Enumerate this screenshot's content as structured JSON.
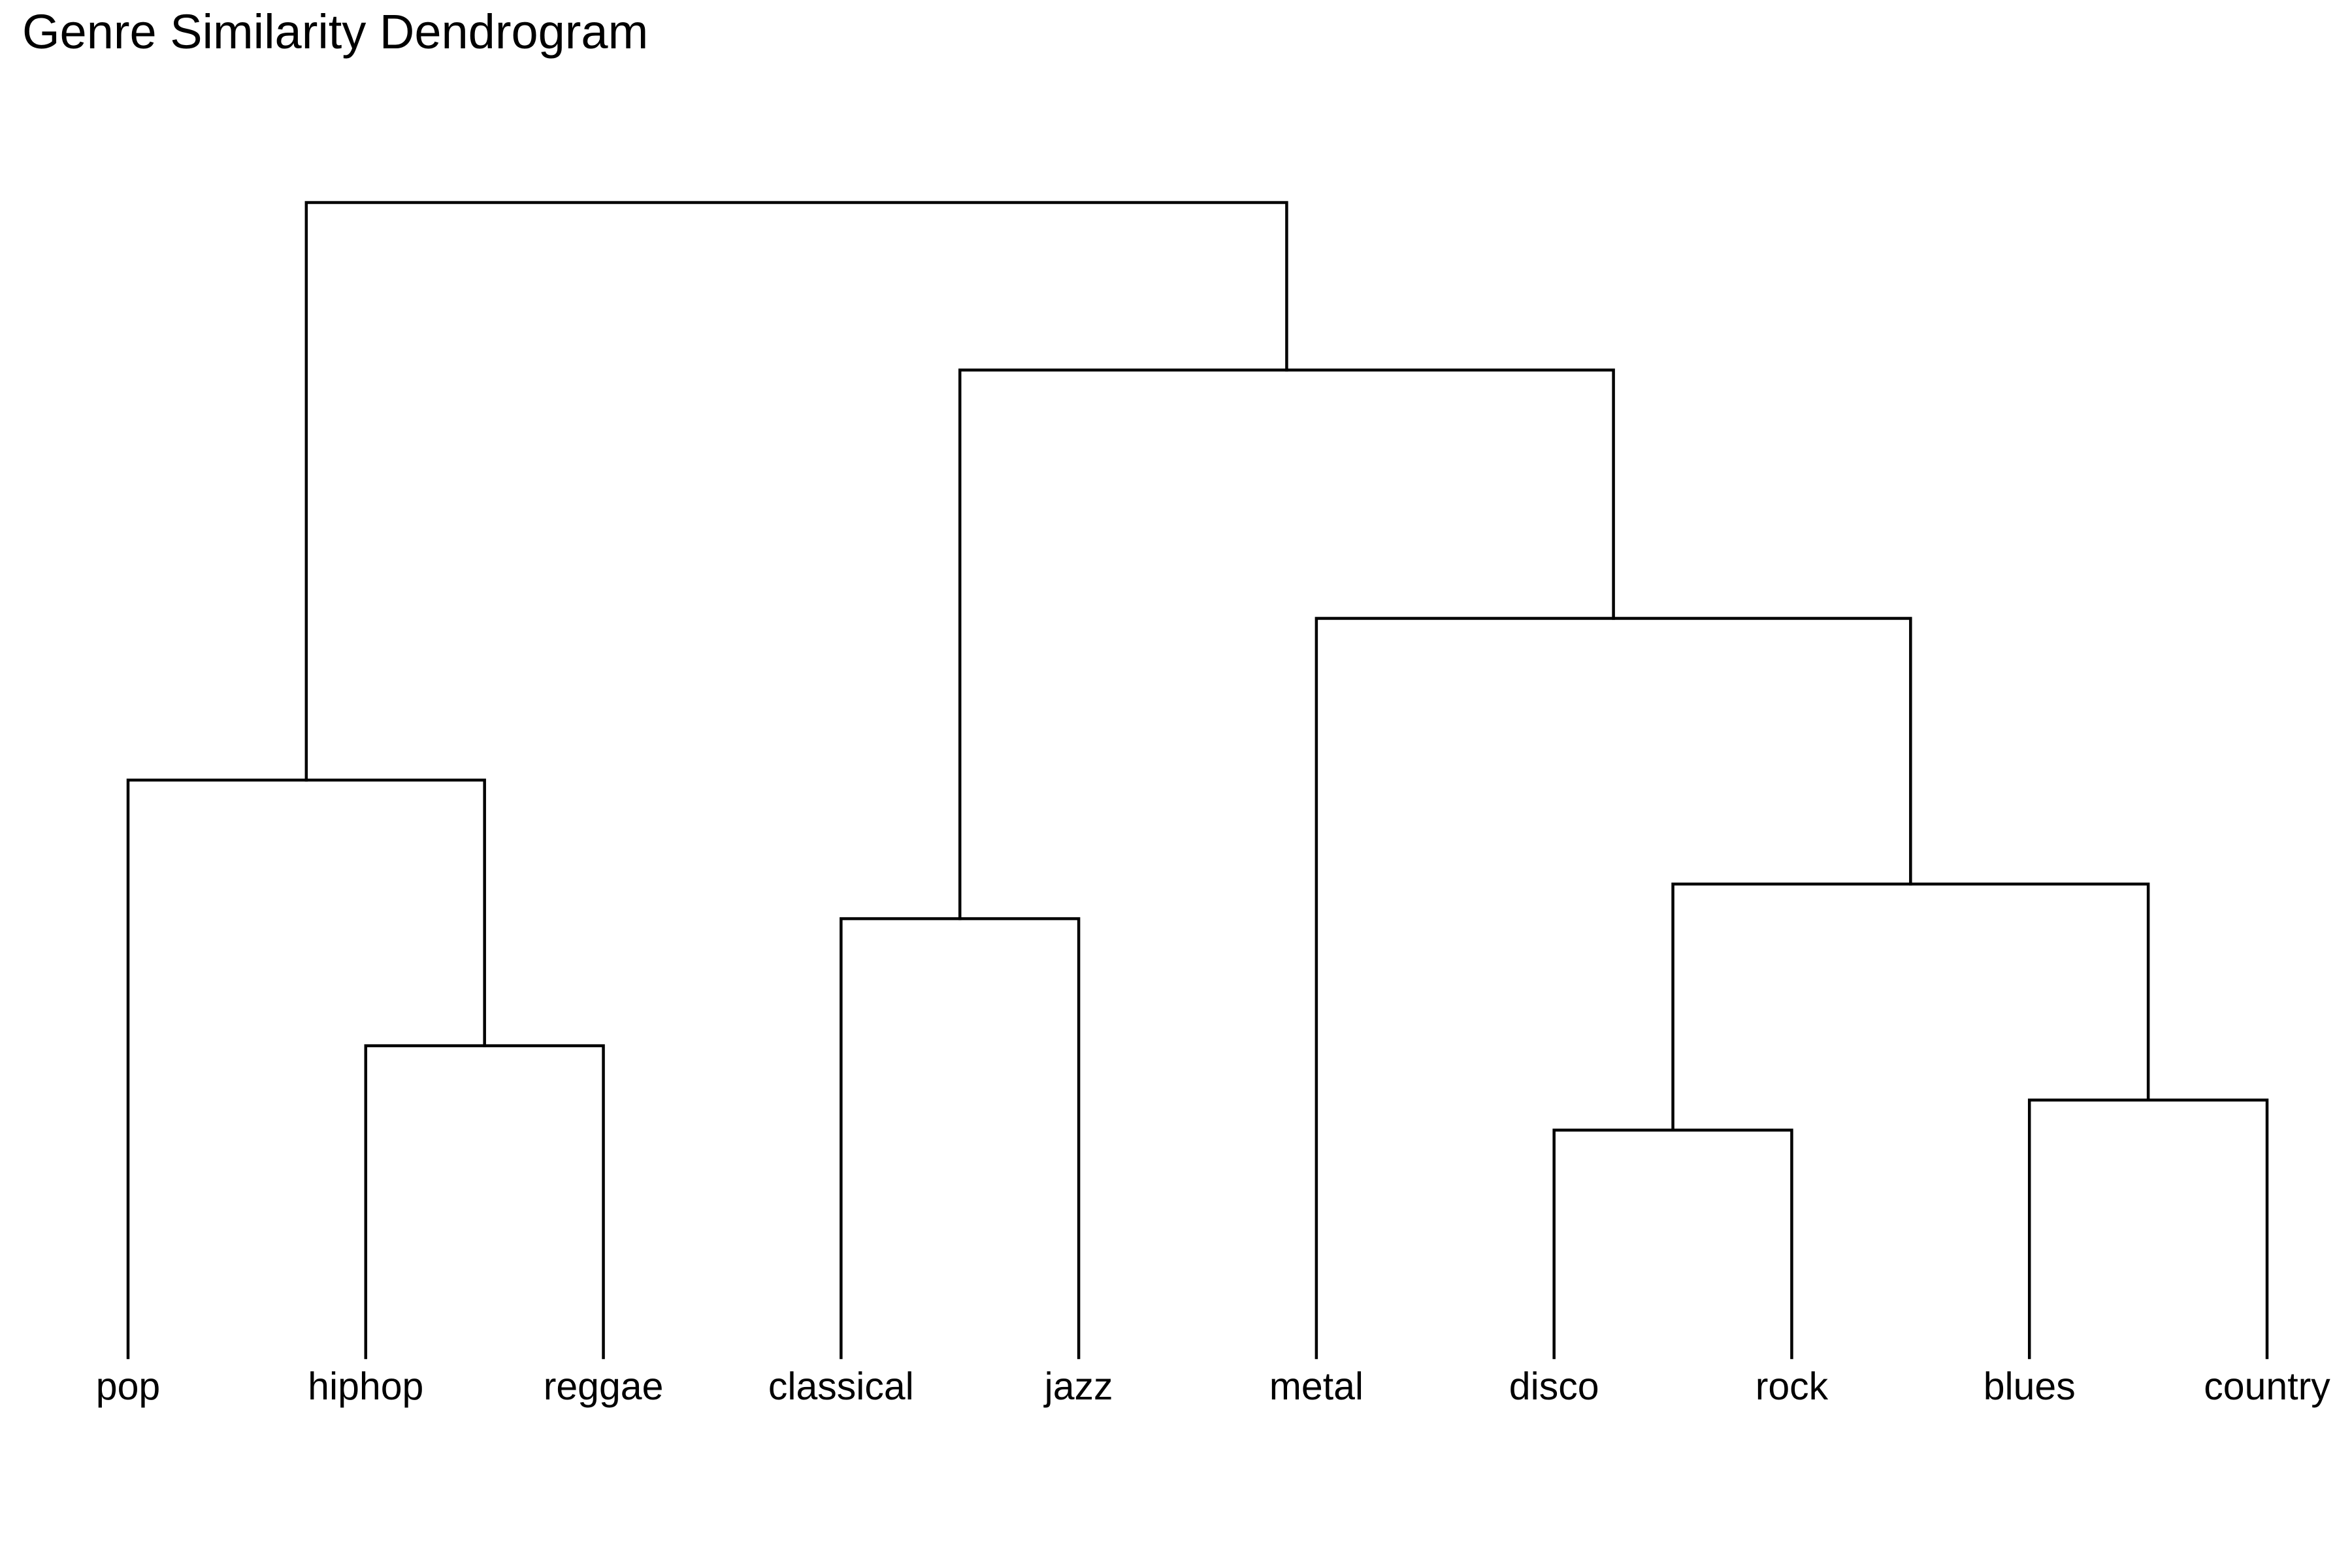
{
  "chart_data": {
    "type": "dendrogram",
    "title": "Genre Similarity Dendrogram",
    "xlabel": "",
    "ylabel": "",
    "leaves": [
      "pop",
      "hiphop",
      "reggae",
      "classical",
      "jazz",
      "metal",
      "disco",
      "rock",
      "blues",
      "country"
    ],
    "height_range": [
      0,
      1.0
    ],
    "merges": [
      {
        "left": "hiphop",
        "right": "reggae",
        "height": 0.27
      },
      {
        "left": "pop",
        "right": "hiphop+reggae",
        "height": 0.5
      },
      {
        "left": "classical",
        "right": "jazz",
        "height": 0.38
      },
      {
        "left": "disco",
        "right": "rock",
        "height": 0.197
      },
      {
        "left": "blues",
        "right": "country",
        "height": 0.223
      },
      {
        "left": "disco+rock",
        "right": "blues+country",
        "height": 0.41
      },
      {
        "left": "metal",
        "right": "disco+rock+blues+country",
        "height": 0.64
      },
      {
        "left": "classical+jazz",
        "right": "metal+disco+rock+blues+country",
        "height": 0.855
      },
      {
        "left": "pop+hiphop+reggae",
        "right": "classical+jazz+metal+disco+rock+blues+country",
        "height": 1.0
      }
    ],
    "axes_visible": false,
    "grid": false,
    "legend": "none",
    "colors": {
      "line": "#000000",
      "text": "#000000",
      "background": "#ffffff"
    }
  }
}
